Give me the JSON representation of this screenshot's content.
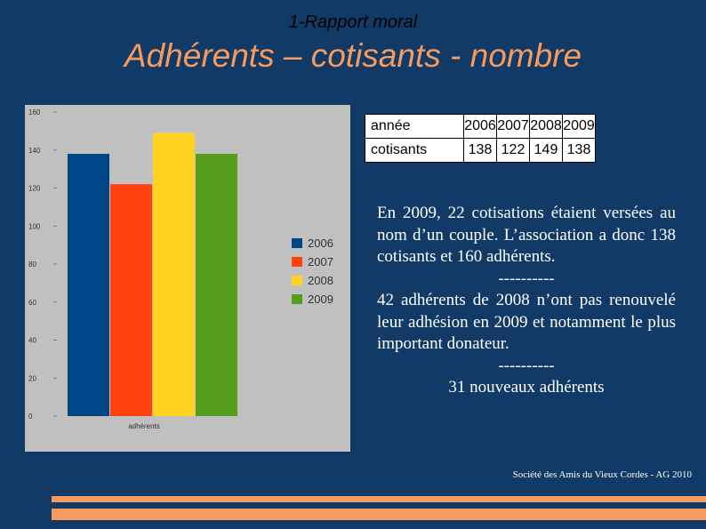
{
  "header": {
    "supertitle": "1-Rapport moral",
    "title": "Adhérents – cotisants - nombre"
  },
  "table": {
    "row_year_label": "année",
    "years": [
      "2006",
      "2007",
      "2008",
      "2009"
    ],
    "row_value_label": "cotisants",
    "values": [
      "138",
      "122",
      "149",
      "138"
    ]
  },
  "body": {
    "p1": "En 2009, 22 cotisations étaient versées au nom d’un couple. L’association a donc 138 cotisants et 160 adhérents.",
    "sep1": "----------",
    "p2": "42 adhérents de 2008 n’ont pas renouvelé leur adhésion en 2009 et notamment le plus important donateur.",
    "sep2": "----------",
    "p3": "31 nouveaux adhérents"
  },
  "footer": {
    "text": "Société des Amis du Vieux Cordes - AG 2010"
  },
  "colors": {
    "background": "#123a66",
    "title": "#f79a5d",
    "accent": "#f79a5d",
    "series": [
      "#004586",
      "#ff420e",
      "#ffd320",
      "#579d1c"
    ]
  },
  "chart_data": {
    "type": "bar",
    "categories": [
      "adhérents"
    ],
    "series": [
      {
        "name": "2006",
        "values": [
          138
        ]
      },
      {
        "name": "2007",
        "values": [
          122
        ]
      },
      {
        "name": "2008",
        "values": [
          149
        ]
      },
      {
        "name": "2009",
        "values": [
          138
        ]
      }
    ],
    "ylim": [
      0,
      160
    ],
    "yticks": [
      0,
      20,
      40,
      60,
      80,
      100,
      120,
      140,
      160
    ],
    "grid": false,
    "legend": "right"
  }
}
